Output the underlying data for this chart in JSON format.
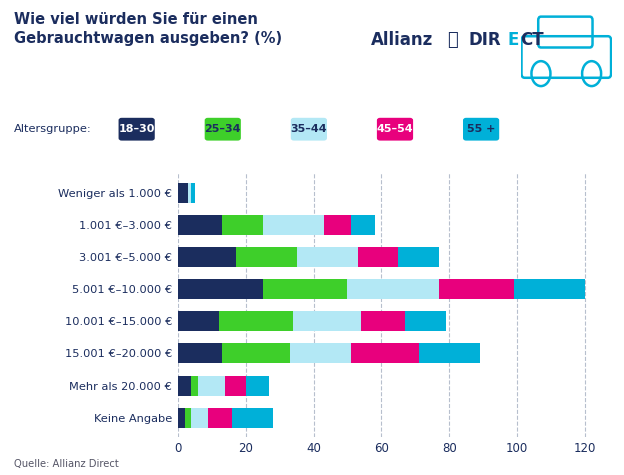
{
  "title": "Wie viel würden Sie für einen\nGebrauchtwagen ausgeben? (%)",
  "source": "Quelle: Allianz Direct",
  "legend_labels": [
    "18–30",
    "25–34",
    "35–44",
    "45–54",
    "55 +"
  ],
  "legend_colors": [
    "#1b2d5e",
    "#3ecf2a",
    "#b3e8f5",
    "#e8007d",
    "#00b0d8"
  ],
  "categories": [
    "Weniger als 1.000 €",
    "1.001 €–3.000 €",
    "3.001 €–5.000 €",
    "5.001 €–10.000 €",
    "10.001 €–15.000 €",
    "15.001 €–20.000 €",
    "Mehr als 20.000 €",
    "Keine Angabe"
  ],
  "data": {
    "18–30": [
      3,
      13,
      17,
      25,
      12,
      13,
      4,
      2
    ],
    "25–34": [
      0,
      12,
      18,
      25,
      22,
      20,
      2,
      2
    ],
    "35–44": [
      1,
      18,
      18,
      27,
      20,
      18,
      8,
      5
    ],
    "45–54": [
      0,
      8,
      12,
      22,
      13,
      20,
      6,
      7
    ],
    "55 +": [
      1,
      7,
      12,
      21,
      12,
      18,
      7,
      12
    ]
  },
  "colors": {
    "18–30": "#1b2d5e",
    "25–34": "#3ecf2a",
    "35–44": "#b3e8f5",
    "45–54": "#e8007d",
    "55 +": "#00b0d8"
  },
  "series_order": [
    "18–30",
    "25–34",
    "35–44",
    "45–54",
    "55 +"
  ],
  "xlim": [
    0,
    126
  ],
  "xticks": [
    0,
    20,
    40,
    60,
    80,
    100,
    120
  ],
  "background_color": "#ffffff",
  "grid_color": "#b0b8c8",
  "title_color": "#1b2d5e",
  "label_color": "#1b2d5e",
  "tick_color": "#1b2d5e"
}
